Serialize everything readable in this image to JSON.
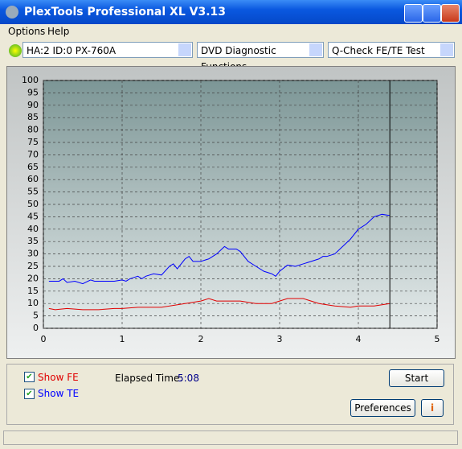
{
  "window": {
    "title": "PlexTools Professional XL V3.13",
    "menu": [
      "Options",
      "Help"
    ],
    "selectors": [
      "HA:2 ID:0  PX-760A",
      "DVD Diagnostic Functions",
      "Q-Check FE/TE Test"
    ],
    "elapsed_label": "Elapsed Time:",
    "elapsed_value": "5:08",
    "buttons": [
      "Start",
      "Preferences"
    ]
  },
  "chart_data": {
    "type": "line",
    "xlim": [
      0,
      5
    ],
    "xticks": [
      0,
      1,
      2,
      3,
      4,
      5
    ],
    "ylim": [
      0,
      100
    ],
    "yticks": [
      0,
      5,
      10,
      15,
      20,
      25,
      30,
      35,
      40,
      45,
      50,
      55,
      60,
      65,
      70,
      75,
      80,
      85,
      90,
      95,
      100
    ],
    "grid": true,
    "marker_x": 4.4,
    "series": [
      {
        "name": "Show FE",
        "color": "#e00000",
        "x": [
          0.07,
          0.15,
          0.3,
          0.5,
          0.7,
          0.9,
          1.0,
          1.2,
          1.5,
          1.8,
          2.0,
          2.1,
          2.2,
          2.5,
          2.7,
          2.9,
          3.0,
          3.1,
          3.3,
          3.5,
          3.7,
          3.9,
          4.0,
          4.2,
          4.4
        ],
        "values": [
          8,
          7.5,
          8,
          7.5,
          7.5,
          8,
          8,
          8.5,
          8.5,
          10,
          11,
          12,
          11,
          11,
          10,
          10,
          11,
          12,
          12,
          10,
          9,
          8.5,
          9,
          9,
          10
        ]
      },
      {
        "name": "Show TE",
        "color": "#0000ff",
        "x": [
          0.07,
          0.2,
          0.25,
          0.3,
          0.4,
          0.5,
          0.6,
          0.65,
          0.9,
          1.0,
          1.05,
          1.1,
          1.2,
          1.25,
          1.3,
          1.4,
          1.5,
          1.6,
          1.65,
          1.7,
          1.8,
          1.85,
          1.9,
          2.0,
          2.1,
          2.2,
          2.3,
          2.35,
          2.45,
          2.5,
          2.6,
          2.7,
          2.8,
          2.9,
          2.95,
          3.0,
          3.1,
          3.2,
          3.3,
          3.4,
          3.5,
          3.55,
          3.6,
          3.7,
          3.8,
          3.9,
          4.0,
          4.1,
          4.2,
          4.3,
          4.4
        ],
        "values": [
          19,
          19,
          20,
          18.5,
          19,
          18,
          19.5,
          19,
          19,
          19.5,
          19,
          20,
          21,
          20,
          21,
          22,
          21.5,
          25,
          26,
          24,
          28,
          29,
          27,
          27,
          28,
          30,
          33,
          32,
          32,
          31,
          27,
          25,
          23,
          22,
          21,
          23,
          25.5,
          25,
          26,
          27,
          28,
          29,
          29,
          30,
          33,
          36,
          40,
          42,
          45,
          46,
          45.5
        ]
      }
    ]
  }
}
